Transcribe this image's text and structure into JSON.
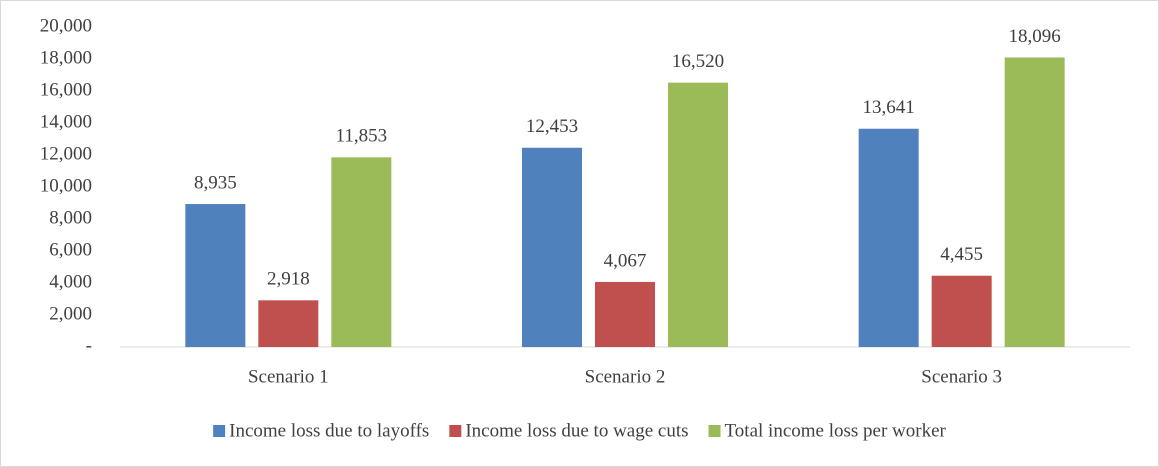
{
  "chart_data": {
    "type": "bar",
    "categories": [
      "Scenario 1",
      "Scenario 2",
      "Scenario 3"
    ],
    "series": [
      {
        "name": "Income loss due to layoffs",
        "color": "#4f81bd",
        "values": [
          8935,
          12453,
          13641
        ],
        "value_labels": [
          "8,935",
          "12,453",
          "13,641"
        ]
      },
      {
        "name": "Income loss due to wage cuts",
        "color": "#c0504d",
        "values": [
          2918,
          4067,
          4455
        ],
        "value_labels": [
          "2,918",
          "4,067",
          "4,455"
        ]
      },
      {
        "name": "Total income loss per worker",
        "color": "#9bbb59",
        "values": [
          11853,
          16520,
          18096
        ],
        "value_labels": [
          "11,853",
          "16,520",
          "18,096"
        ]
      }
    ],
    "ylim": [
      0,
      20000
    ],
    "yticks": [
      {
        "value": 0,
        "label": "-"
      },
      {
        "value": 2000,
        "label": "2,000"
      },
      {
        "value": 4000,
        "label": "4,000"
      },
      {
        "value": 6000,
        "label": "6,000"
      },
      {
        "value": 8000,
        "label": "8,000"
      },
      {
        "value": 10000,
        "label": "10,000"
      },
      {
        "value": 12000,
        "label": "12,000"
      },
      {
        "value": 14000,
        "label": "14,000"
      },
      {
        "value": 16000,
        "label": "16,000"
      },
      {
        "value": 18000,
        "label": "18,000"
      },
      {
        "value": 20000,
        "label": "20,000"
      }
    ],
    "grid": false,
    "legend": "bottom"
  }
}
